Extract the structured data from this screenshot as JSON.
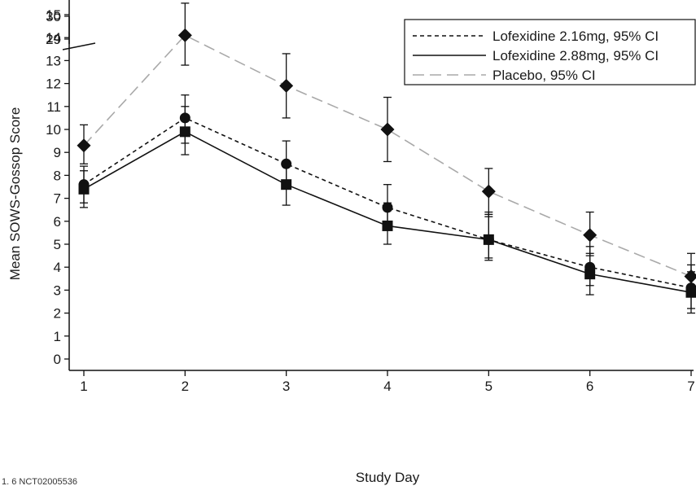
{
  "chart_data": {
    "type": "line",
    "title": "",
    "xlabel": "Study Day",
    "ylabel": "Mean SOWS-Gossop Score",
    "x": [
      1,
      2,
      3,
      4,
      5,
      6,
      7
    ],
    "x_ticks": [
      "1",
      "2",
      "3",
      "4",
      "5",
      "6",
      "7"
    ],
    "xlim": [
      1,
      7
    ],
    "ylim": [
      0,
      30
    ],
    "y_ticks": [
      "0",
      "1",
      "2",
      "3",
      "4",
      "5",
      "6",
      "7",
      "8",
      "9",
      "10",
      "11",
      "12",
      "13",
      "14",
      "15",
      "16",
      "29",
      "30"
    ],
    "y_axis_break": {
      "between": [
        16,
        29
      ]
    },
    "grid": false,
    "legend_position": "top-right",
    "series": [
      {
        "name": "Lofexidine 2.16mg, 95% CI",
        "line_style": "dotted",
        "color": "#111111",
        "marker": "circle",
        "values": [
          7.6,
          10.5,
          8.5,
          6.6,
          5.2,
          4.0,
          3.1
        ],
        "ci_low": [
          6.8,
          9.4,
          7.6,
          5.8,
          4.4,
          3.2,
          2.2
        ],
        "ci_high": [
          8.4,
          11.5,
          9.5,
          7.6,
          6.4,
          4.9,
          4.1
        ]
      },
      {
        "name": "Lofexidine 2.88mg, 95% CI",
        "line_style": "solid",
        "color": "#111111",
        "marker": "square",
        "values": [
          7.4,
          9.9,
          7.6,
          5.8,
          5.2,
          3.7,
          2.9
        ],
        "ci_low": [
          6.6,
          8.9,
          6.7,
          5.0,
          4.3,
          2.8,
          2.0
        ],
        "ci_high": [
          8.2,
          11.0,
          8.4,
          6.8,
          6.3,
          4.6,
          3.8
        ]
      },
      {
        "name": "Placebo, 95% CI",
        "line_style": "dashed",
        "color": "#a9a9a9",
        "marker": "diamond",
        "values": [
          9.3,
          14.1,
          11.9,
          10.0,
          7.3,
          5.4,
          3.6
        ],
        "ci_low": [
          8.5,
          12.8,
          10.5,
          8.6,
          6.2,
          4.5,
          2.7
        ],
        "ci_high": [
          10.2,
          15.5,
          13.3,
          11.4,
          8.3,
          6.4,
          4.6
        ]
      }
    ]
  },
  "footnote": "1. 6 NCT02005536"
}
